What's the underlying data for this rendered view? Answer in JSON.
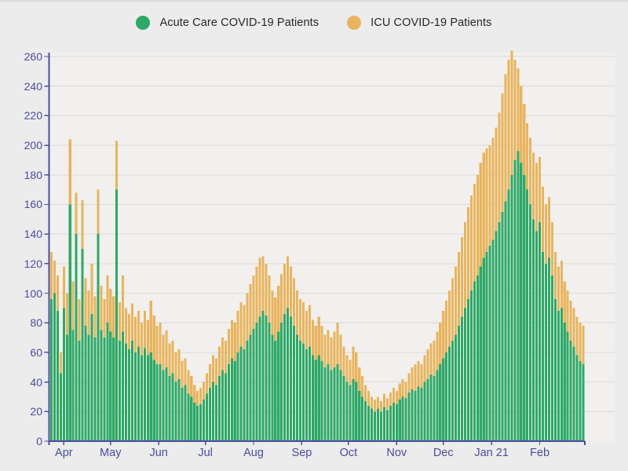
{
  "legend": {
    "items": [
      {
        "label": "Acute Care COVID-19 Patients",
        "color": "#2ca966"
      },
      {
        "label": "ICU COVID-19 Patients",
        "color": "#e9b45c"
      }
    ]
  },
  "chart_data": {
    "type": "bar",
    "stacked": true,
    "title": "",
    "xlabel": "",
    "ylabel": "",
    "x_unit": "2-day samples, late March through late February (Jan 21 marks January 2021)",
    "ylim": [
      0,
      260
    ],
    "grid": "horizontal",
    "legend_position": "top",
    "y_ticks": [
      0,
      20,
      40,
      60,
      80,
      100,
      120,
      140,
      160,
      180,
      200,
      220,
      240,
      260
    ],
    "x_ticks": [
      {
        "label": "Apr",
        "index": 4.5
      },
      {
        "label": "May",
        "index": 19.5
      },
      {
        "label": "Jun",
        "index": 35
      },
      {
        "label": "Jul",
        "index": 50
      },
      {
        "label": "Aug",
        "index": 65.5
      },
      {
        "label": "Sep",
        "index": 81
      },
      {
        "label": "Oct",
        "index": 96
      },
      {
        "label": "Nov",
        "index": 111.5
      },
      {
        "label": "Dec",
        "index": 126.5
      },
      {
        "label": "Jan 21",
        "index": 142
      },
      {
        "label": "Feb",
        "index": 157.5
      }
    ],
    "series": [
      {
        "name": "Acute Care COVID-19 Patients",
        "color": "#2ca966",
        "values": [
          96,
          100,
          88,
          46,
          90,
          72,
          160,
          75,
          140,
          68,
          130,
          78,
          72,
          86,
          70,
          140,
          75,
          70,
          80,
          74,
          70,
          170,
          68,
          74,
          66,
          62,
          68,
          60,
          64,
          58,
          63,
          58,
          60,
          55,
          52,
          52,
          48,
          50,
          44,
          46,
          40,
          42,
          36,
          38,
          32,
          30,
          26,
          24,
          25,
          28,
          32,
          36,
          40,
          38,
          44,
          48,
          46,
          52,
          56,
          54,
          60,
          64,
          62,
          68,
          72,
          76,
          80,
          84,
          88,
          85,
          80,
          72,
          68,
          74,
          80,
          86,
          90,
          84,
          78,
          72,
          68,
          66,
          62,
          64,
          58,
          55,
          58,
          54,
          50,
          52,
          48,
          50,
          52,
          48,
          44,
          40,
          38,
          42,
          40,
          34,
          30,
          27,
          24,
          22,
          20,
          22,
          20,
          23,
          21,
          24,
          26,
          25,
          28,
          30,
          29,
          33,
          35,
          34,
          37,
          36,
          40,
          42,
          45,
          44,
          48,
          52,
          56,
          60,
          64,
          68,
          72,
          78,
          84,
          90,
          96,
          102,
          108,
          112,
          118,
          124,
          128,
          132,
          136,
          142,
          148,
          155,
          162,
          170,
          180,
          190,
          196,
          188,
          180,
          170,
          160,
          150,
          142,
          148,
          128,
          120,
          124,
          112,
          96,
          88,
          90,
          80,
          74,
          68,
          64,
          58,
          54,
          52
        ]
      },
      {
        "name": "ICU COVID-19 Patients",
        "color": "#e9b45c",
        "values": [
          32,
          22,
          24,
          14,
          28,
          28,
          44,
          33,
          28,
          28,
          33,
          32,
          30,
          34,
          28,
          30,
          30,
          26,
          32,
          29,
          28,
          33,
          26,
          38,
          24,
          24,
          25,
          24,
          24,
          22,
          25,
          24,
          35,
          30,
          26,
          28,
          24,
          25,
          22,
          22,
          20,
          20,
          18,
          18,
          16,
          14,
          12,
          10,
          11,
          12,
          14,
          16,
          18,
          18,
          20,
          22,
          22,
          24,
          26,
          26,
          28,
          30,
          30,
          32,
          34,
          36,
          38,
          40,
          37,
          35,
          32,
          30,
          29,
          31,
          33,
          34,
          35,
          34,
          32,
          30,
          28,
          28,
          26,
          28,
          24,
          23,
          26,
          24,
          22,
          23,
          22,
          24,
          28,
          24,
          20,
          18,
          17,
          22,
          20,
          16,
          14,
          11,
          10,
          8,
          8,
          8,
          7,
          9,
          8,
          9,
          10,
          9,
          11,
          12,
          11,
          13,
          15,
          18,
          17,
          16,
          18,
          20,
          21,
          24,
          26,
          28,
          32,
          35,
          38,
          42,
          46,
          50,
          54,
          58,
          62,
          64,
          66,
          68,
          70,
          71,
          70,
          68,
          69,
          70,
          74,
          80,
          86,
          88,
          84,
          68,
          56,
          52,
          48,
          45,
          45,
          45,
          46,
          44,
          44,
          40,
          41,
          36,
          32,
          30,
          32,
          28,
          28,
          27,
          26,
          26,
          26,
          26
        ]
      }
    ]
  },
  "colors": {
    "page_background": "#ececec",
    "plot_background": "#f1f0ee",
    "gridline": "#dadad8",
    "axis": "#4c4ba3",
    "tick_label": "#4c4ba3",
    "legend_text": "#272727",
    "acute_green": "#2ca966",
    "icu_orange": "#e9b45c"
  }
}
